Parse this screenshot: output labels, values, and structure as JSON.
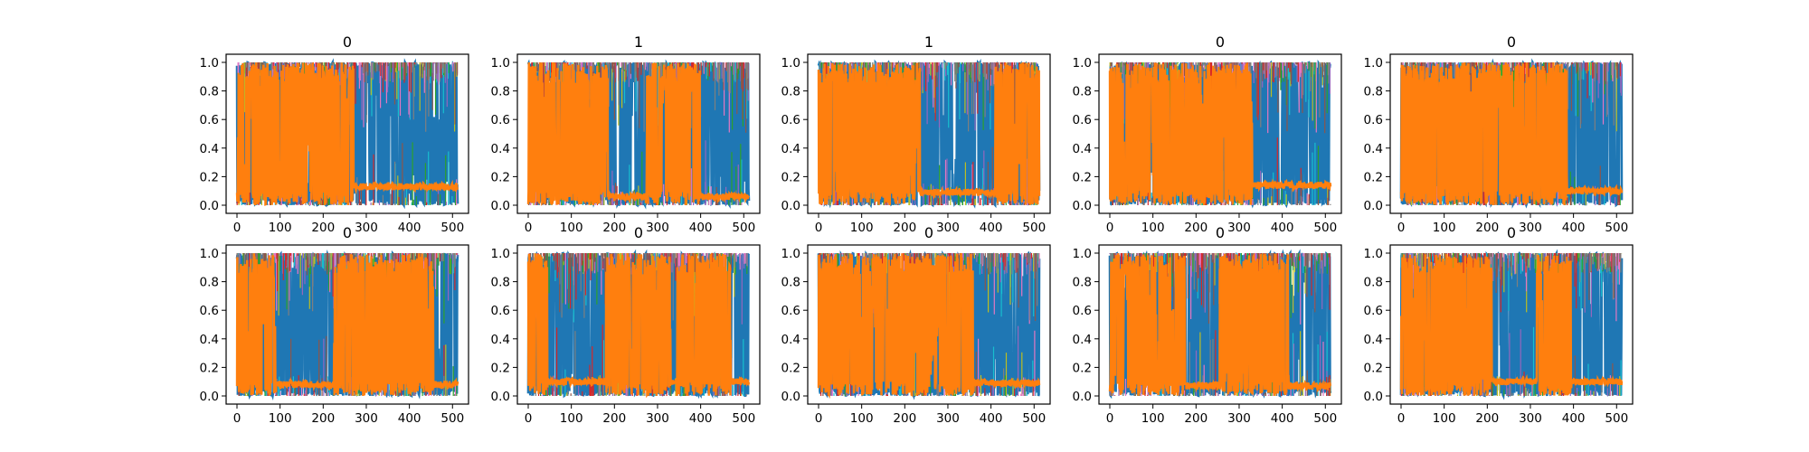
{
  "figure": {
    "colors": {
      "background": "#ffffff",
      "frame": "#000000",
      "dense_series": "#1f77b4",
      "highlight_series": "#ff7f0e",
      "accent_series": [
        "#17becf",
        "#bcbd22",
        "#2ca02c",
        "#9467bd",
        "#e377c2",
        "#d62728",
        "#8c564b",
        "#7f7f7f"
      ]
    }
  },
  "chart_data": [
    {
      "type": "line",
      "title": "0",
      "xlim": [
        0,
        512
      ],
      "ylim": [
        0,
        1
      ],
      "xticks": [
        0,
        100,
        200,
        300,
        400,
        500
      ],
      "yticks": [
        0.0,
        0.2,
        0.4,
        0.6,
        0.8,
        1.0
      ],
      "series": [
        {
          "values": "many overlapping series in [0, 1]"
        }
      ],
      "highlight": {
        "high_segments": [
          [
            0,
            270
          ]
        ],
        "low_level": 0.13
      }
    },
    {
      "type": "line",
      "title": "1",
      "xlim": [
        0,
        512
      ],
      "ylim": [
        0,
        1
      ],
      "xticks": [
        0,
        100,
        200,
        300,
        400,
        500
      ],
      "yticks": [
        0.0,
        0.2,
        0.4,
        0.6,
        0.8,
        1.0
      ],
      "highlight": {
        "high_segments": [
          [
            0,
            185
          ],
          [
            270,
            400
          ]
        ],
        "low_level": 0.06
      }
    },
    {
      "type": "line",
      "title": "1",
      "xlim": [
        0,
        512
      ],
      "ylim": [
        0,
        1
      ],
      "xticks": [
        0,
        100,
        200,
        300,
        400,
        500
      ],
      "yticks": [
        0.0,
        0.2,
        0.4,
        0.6,
        0.8,
        1.0
      ],
      "highlight": {
        "high_segments": [
          [
            0,
            235
          ],
          [
            410,
            512
          ]
        ],
        "low_level": 0.09
      }
    },
    {
      "type": "line",
      "title": "0",
      "xlim": [
        0,
        512
      ],
      "ylim": [
        0,
        1
      ],
      "xticks": [
        0,
        100,
        200,
        300,
        400,
        500
      ],
      "yticks": [
        0.0,
        0.2,
        0.4,
        0.6,
        0.8,
        1.0
      ],
      "highlight": {
        "high_segments": [
          [
            0,
            330
          ]
        ],
        "low_level": 0.14
      }
    },
    {
      "type": "line",
      "title": "0",
      "xlim": [
        0,
        512
      ],
      "ylim": [
        0,
        1
      ],
      "xticks": [
        0,
        100,
        200,
        300,
        400,
        500
      ],
      "yticks": [
        0.0,
        0.2,
        0.4,
        0.6,
        0.8,
        1.0
      ],
      "highlight": {
        "high_segments": [
          [
            0,
            385
          ]
        ],
        "low_level": 0.1
      }
    },
    {
      "type": "line",
      "title": "0",
      "xlim": [
        0,
        512
      ],
      "ylim": [
        0,
        1
      ],
      "xticks": [
        0,
        100,
        200,
        300,
        400,
        500
      ],
      "yticks": [
        0.0,
        0.2,
        0.4,
        0.6,
        0.8,
        1.0
      ],
      "highlight": {
        "high_segments": [
          [
            0,
            90
          ],
          [
            225,
            455
          ]
        ],
        "low_level": 0.08
      }
    },
    {
      "type": "line",
      "title": "0",
      "xlim": [
        0,
        512
      ],
      "ylim": [
        0,
        1
      ],
      "xticks": [
        0,
        100,
        200,
        300,
        400,
        500
      ],
      "yticks": [
        0.0,
        0.2,
        0.4,
        0.6,
        0.8,
        1.0
      ],
      "highlight": {
        "high_segments": [
          [
            0,
            45
          ],
          [
            180,
            330
          ],
          [
            345,
            470
          ]
        ],
        "low_level": 0.1
      }
    },
    {
      "type": "line",
      "title": "0",
      "xlim": [
        0,
        512
      ],
      "ylim": [
        0,
        1
      ],
      "xticks": [
        0,
        100,
        200,
        300,
        400,
        500
      ],
      "yticks": [
        0.0,
        0.2,
        0.4,
        0.6,
        0.8,
        1.0
      ],
      "highlight": {
        "high_segments": [
          [
            0,
            360
          ]
        ],
        "low_level": 0.09
      }
    },
    {
      "type": "line",
      "title": "0",
      "xlim": [
        0,
        512
      ],
      "ylim": [
        0,
        1
      ],
      "xticks": [
        0,
        100,
        200,
        300,
        400,
        500
      ],
      "yticks": [
        0.0,
        0.2,
        0.4,
        0.6,
        0.8,
        1.0
      ],
      "highlight": {
        "high_segments": [
          [
            0,
            175
          ],
          [
            255,
            415
          ]
        ],
        "low_level": 0.07
      }
    },
    {
      "type": "line",
      "title": "0",
      "xlim": [
        0,
        512
      ],
      "ylim": [
        0,
        1
      ],
      "xticks": [
        0,
        100,
        200,
        300,
        400,
        500
      ],
      "yticks": [
        0.0,
        0.2,
        0.4,
        0.6,
        0.8,
        1.0
      ],
      "highlight": {
        "high_segments": [
          [
            0,
            210
          ],
          [
            315,
            395
          ]
        ],
        "low_level": 0.1
      }
    }
  ]
}
